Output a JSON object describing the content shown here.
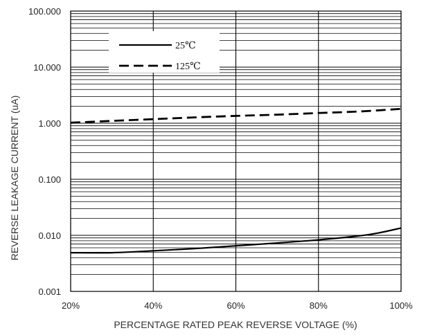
{
  "chart_data": {
    "type": "line",
    "xlabel": "PERCENTAGE RATED PEAK REVERSE VOLTAGE (%)",
    "ylabel": "REVERSE LEAKAGE CURRENT (uA)",
    "xlim": [
      20,
      100
    ],
    "ylim": [
      0.001,
      100
    ],
    "yscale": "log",
    "grid": true,
    "legend_position": "top-left",
    "x_ticks": [
      20,
      40,
      60,
      80,
      100
    ],
    "x_tick_labels": [
      "20%",
      "40%",
      "60%",
      "80%",
      "100%"
    ],
    "y_ticks": [
      0.001,
      0.01,
      0.1,
      1,
      10,
      100
    ],
    "y_tick_labels": [
      "0.001",
      "0.010",
      "0.100",
      "1.000",
      "10.000",
      "100.000"
    ],
    "series": [
      {
        "name": "25℃",
        "style": "solid",
        "color": "#000000",
        "x": [
          20,
          30,
          40,
          50,
          60,
          70,
          80,
          90,
          95,
          100
        ],
        "y": [
          0.0049,
          0.0049,
          0.0053,
          0.0058,
          0.0065,
          0.0073,
          0.0083,
          0.0098,
          0.0112,
          0.0135
        ]
      },
      {
        "name": "125℃",
        "style": "dashed",
        "color": "#000000",
        "x": [
          20,
          30,
          40,
          50,
          60,
          70,
          80,
          90,
          100
        ],
        "y": [
          1.02,
          1.1,
          1.18,
          1.27,
          1.35,
          1.42,
          1.52,
          1.62,
          1.8
        ]
      }
    ]
  }
}
